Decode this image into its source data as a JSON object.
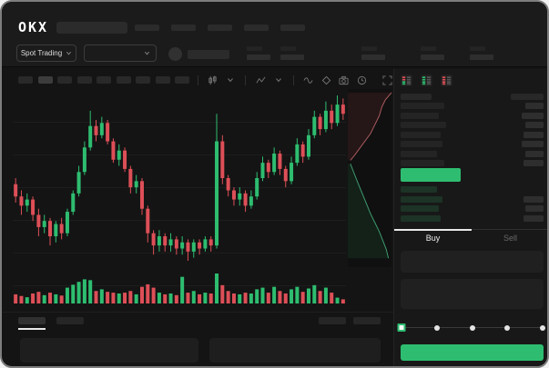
{
  "app": {
    "logo_text": "OKX"
  },
  "colors": {
    "up": "#2ebd70",
    "down": "#dd4f57",
    "accent": "#2ebd70",
    "window_bg": "#141414",
    "panel_bg": "#181818"
  },
  "header": {
    "market_selector_label": "Spot Trading",
    "nav_placeholder_count": 5,
    "stats_placeholder_count": 5
  },
  "toolbar": {
    "timeframe_count": 9,
    "active_timeframe_index": 1,
    "icons": [
      "candle-style",
      "chevron-down",
      "indicators",
      "chevron-down",
      "line-tool",
      "draw-tool",
      "screenshot",
      "chart-settings",
      "fullscreen"
    ]
  },
  "orderbook": {
    "view_toggles": [
      "combined-book",
      "bids-only",
      "asks-only"
    ],
    "asks": [
      {
        "l": 48,
        "r": 20
      },
      {
        "l": 42,
        "r": 24
      },
      {
        "l": 50,
        "r": 20
      },
      {
        "l": 44,
        "r": 22
      },
      {
        "l": 46,
        "r": 24
      },
      {
        "l": 40,
        "r": 20
      },
      {
        "l": 48,
        "r": 22
      }
    ],
    "bids": [
      {
        "l": 40,
        "r": 0
      },
      {
        "l": 46,
        "r": 22
      },
      {
        "l": 42,
        "r": 20
      },
      {
        "l": 44,
        "r": 22
      }
    ],
    "tabs": {
      "buy": "Buy",
      "sell": "Sell",
      "active": "buy"
    }
  },
  "trade_form": {
    "slider_stops": 5,
    "slider_value_index": 0
  },
  "chart_data": {
    "type": "candlestick",
    "candles": [
      [
        56,
        58,
        50,
        52
      ],
      [
        52,
        54,
        46,
        49
      ],
      [
        49,
        53,
        47,
        51
      ],
      [
        51,
        52,
        44,
        46
      ],
      [
        46,
        48,
        39,
        42
      ],
      [
        42,
        46,
        40,
        44
      ],
      [
        44,
        45,
        36,
        39
      ],
      [
        39,
        44,
        37,
        43
      ],
      [
        43,
        45,
        38,
        40
      ],
      [
        40,
        48,
        39,
        47
      ],
      [
        47,
        54,
        46,
        53
      ],
      [
        53,
        62,
        52,
        60
      ],
      [
        60,
        70,
        59,
        68
      ],
      [
        68,
        80,
        67,
        75
      ],
      [
        75,
        77,
        70,
        72
      ],
      [
        72,
        78,
        71,
        76
      ],
      [
        76,
        77,
        69,
        70
      ],
      [
        70,
        71,
        63,
        64
      ],
      [
        64,
        69,
        62,
        67
      ],
      [
        67,
        68,
        60,
        61
      ],
      [
        61,
        62,
        53,
        55
      ],
      [
        55,
        59,
        53,
        57
      ],
      [
        57,
        58,
        46,
        48
      ],
      [
        48,
        49,
        37,
        40
      ],
      [
        40,
        41,
        33,
        36
      ],
      [
        36,
        41,
        34,
        39
      ],
      [
        39,
        40,
        34,
        36
      ],
      [
        36,
        40,
        34,
        38
      ],
      [
        38,
        39,
        33,
        35
      ],
      [
        35,
        39,
        33,
        37
      ],
      [
        37,
        38,
        31,
        34
      ],
      [
        34,
        38,
        32,
        37
      ],
      [
        37,
        38,
        33,
        35
      ],
      [
        35,
        39,
        34,
        38
      ],
      [
        38,
        39,
        34,
        36
      ],
      [
        36,
        79,
        35,
        70
      ],
      [
        70,
        72,
        56,
        58
      ],
      [
        58,
        59,
        52,
        54
      ],
      [
        54,
        55,
        49,
        51
      ],
      [
        51,
        55,
        49,
        53
      ],
      [
        53,
        54,
        47,
        49
      ],
      [
        49,
        54,
        48,
        52
      ],
      [
        52,
        60,
        51,
        58
      ],
      [
        58,
        65,
        57,
        63
      ],
      [
        63,
        64,
        58,
        60
      ],
      [
        60,
        68,
        59,
        66
      ],
      [
        66,
        67,
        59,
        61
      ],
      [
        61,
        62,
        55,
        57
      ],
      [
        57,
        65,
        56,
        63
      ],
      [
        63,
        71,
        62,
        69
      ],
      [
        69,
        70,
        63,
        65
      ],
      [
        65,
        74,
        64,
        72
      ],
      [
        72,
        80,
        71,
        78
      ],
      [
        78,
        79,
        72,
        74
      ],
      [
        74,
        83,
        73,
        80
      ],
      [
        80,
        82,
        74,
        76
      ],
      [
        76,
        85,
        75,
        82
      ],
      [
        82,
        84,
        77,
        79
      ]
    ],
    "volumes": [
      22,
      18,
      15,
      24,
      28,
      20,
      26,
      22,
      19,
      38,
      45,
      52,
      58,
      56,
      30,
      34,
      28,
      26,
      24,
      26,
      30,
      22,
      40,
      46,
      38,
      26,
      22,
      24,
      20,
      64,
      26,
      30,
      22,
      26,
      24,
      72,
      44,
      30,
      24,
      22,
      26,
      24,
      34,
      38,
      26,
      40,
      30,
      24,
      34,
      40,
      28,
      36,
      44,
      30,
      38,
      26,
      14,
      10
    ],
    "depth": {
      "asks": [
        [
          1,
          0.02
        ],
        [
          0.86,
          0.06
        ],
        [
          0.78,
          0.1
        ],
        [
          0.72,
          0.15
        ],
        [
          0.62,
          0.2
        ],
        [
          0.52,
          0.25
        ],
        [
          0.4,
          0.29
        ],
        [
          0.28,
          0.33
        ],
        [
          0.16,
          0.37
        ],
        [
          0.06,
          0.4
        ]
      ],
      "bids": [
        [
          0.06,
          0.42
        ],
        [
          0.14,
          0.47
        ],
        [
          0.22,
          0.52
        ],
        [
          0.32,
          0.58
        ],
        [
          0.42,
          0.64
        ],
        [
          0.52,
          0.7
        ],
        [
          0.62,
          0.75
        ],
        [
          0.72,
          0.8
        ],
        [
          0.8,
          0.85
        ],
        [
          0.88,
          0.9
        ],
        [
          0.93,
          0.95
        ]
      ]
    }
  }
}
